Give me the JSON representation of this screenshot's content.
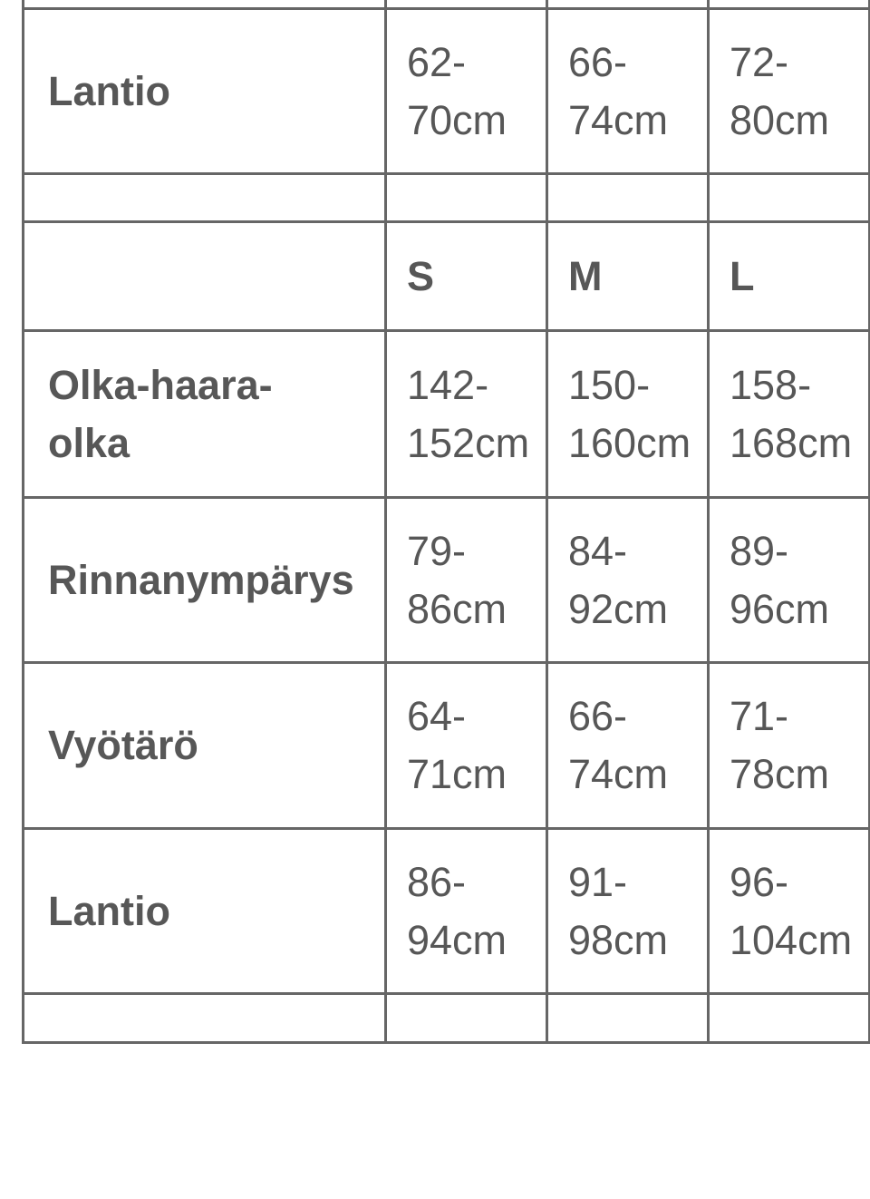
{
  "sections": [
    {
      "rows": [
        {
          "label": "Lantio",
          "values": [
            [
              "62-",
              "70cm"
            ],
            [
              "66-",
              "74cm"
            ],
            [
              "72-",
              "80cm"
            ]
          ]
        }
      ]
    },
    {
      "sizes": [
        "S",
        "M",
        "L"
      ],
      "rows": [
        {
          "label": [
            "Olka-haara-",
            "olka"
          ],
          "values": [
            [
              "142-",
              "152cm"
            ],
            [
              "150-",
              "160cm"
            ],
            [
              "158-",
              "168cm"
            ]
          ]
        },
        {
          "label": [
            "Rinnanympärys"
          ],
          "values": [
            [
              "79-",
              "86cm"
            ],
            [
              "84-",
              "92cm"
            ],
            [
              "89-",
              "96cm"
            ]
          ]
        },
        {
          "label": [
            "Vyötärö"
          ],
          "values": [
            [
              "64-",
              "71cm"
            ],
            [
              "66-",
              "74cm"
            ],
            [
              "71-",
              "78cm"
            ]
          ]
        },
        {
          "label": [
            "Lantio"
          ],
          "values": [
            [
              "86-",
              "94cm"
            ],
            [
              "91-",
              "98cm"
            ],
            [
              "96-",
              "104cm"
            ]
          ]
        }
      ]
    }
  ]
}
